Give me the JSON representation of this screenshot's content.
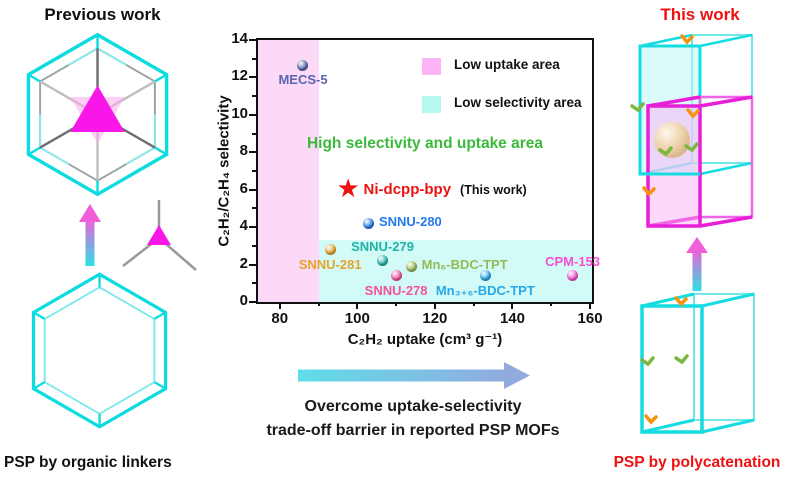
{
  "left_panel": {
    "title": "Previous work",
    "caption": "PSP by organic linkers"
  },
  "right_panel": {
    "title": "This work",
    "caption": "PSP by polycatenation",
    "accent_color": "#ee1111"
  },
  "transition": {
    "line1": "Overcome uptake-selectivity",
    "line2": "trade-off barrier in reported PSP MOFs"
  },
  "colors": {
    "cyan_structure": "#14dce0",
    "magenta_structure": "#ee22dd",
    "red_accent": "#ee1111",
    "green_annotation": "#3cb93c"
  },
  "chart_data": {
    "type": "scatter",
    "xlabel": "C₂H₂ uptake (cm³ g⁻¹)",
    "ylabel": "C₂H₂/C₂H₄ selectivity",
    "xlim": [
      74.4,
      160.5
    ],
    "ylim": [
      0,
      14
    ],
    "x_major_ticks": [
      80,
      100,
      120,
      140,
      160
    ],
    "x_minor_ticks": [
      90,
      110,
      130,
      150
    ],
    "y_major_ticks": [
      0,
      2,
      4,
      6,
      8,
      10,
      12,
      14
    ],
    "y_minor_ticks": [
      1,
      3,
      5,
      7,
      9,
      11,
      13
    ],
    "grid": false,
    "legend_position": "top-right-inside",
    "regions": [
      {
        "id": "low-uptake",
        "label": "Low uptake area",
        "color": "#fbd9f7",
        "swatch": "#fcb4f4",
        "x": [
          74.4,
          90
        ],
        "y": [
          0,
          14
        ]
      },
      {
        "id": "low-selectivity",
        "label": "Low selectivity area",
        "color": "#d2faf6",
        "swatch": "#b4f8f0",
        "x": [
          90,
          160.5
        ],
        "y": [
          0,
          3.3
        ]
      }
    ],
    "annotation": {
      "text": "High selectivity and uptake area",
      "color": "#3cb93c",
      "x": 118,
      "y": 8.5
    },
    "highlight_point": {
      "name": "Ni-dcpp-bpy",
      "suffix": "(This work)",
      "x": 98,
      "y": 5.9,
      "color": "#ee1111",
      "marker": "star"
    },
    "points": [
      {
        "name": "MECS-5",
        "x": 86,
        "y": 12.65,
        "color": "#5a64b0",
        "label_pos": "below"
      },
      {
        "name": "SNNU-280",
        "x": 103,
        "y": 4.2,
        "color": "#2478f0",
        "label_pos": "right"
      },
      {
        "name": "SNNU-281",
        "x": 93,
        "y": 2.8,
        "color": "#e8a32d",
        "label_pos": "below"
      },
      {
        "name": "SNNU-279",
        "x": 106.5,
        "y": 2.2,
        "color": "#21b3a8",
        "label_pos": "above"
      },
      {
        "name": "Mn₆-BDC-TPT",
        "x": 114,
        "y": 1.9,
        "color": "#95ba58",
        "label_pos": "right"
      },
      {
        "name": "SNNU-278",
        "x": 110,
        "y": 1.4,
        "color": "#f5519f",
        "label_pos": "below"
      },
      {
        "name": "Mn₃₊₆-BDC-TPT",
        "x": 133,
        "y": 1.4,
        "color": "#28a8e8",
        "label_pos": "below"
      },
      {
        "name": "CPM-153",
        "x": 155.5,
        "y": 1.4,
        "color": "#f54fd4",
        "label_pos": "above"
      }
    ]
  }
}
